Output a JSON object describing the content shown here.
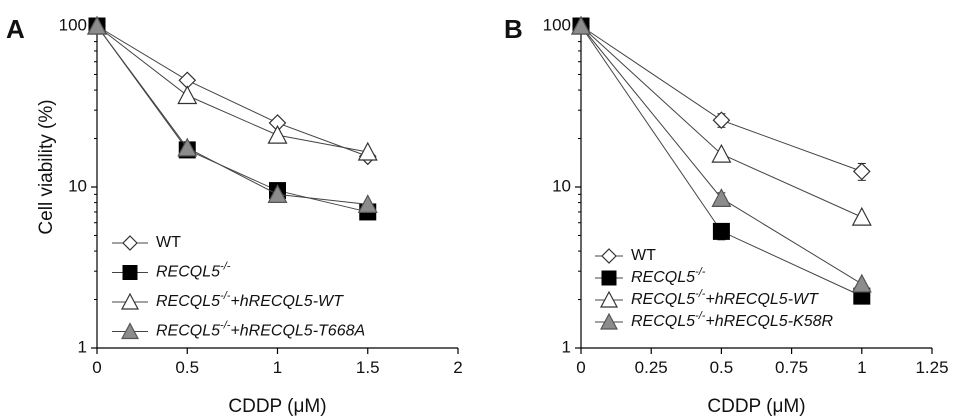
{
  "chart_data": [
    {
      "panel": "A",
      "type": "line",
      "xlabel": "CDDP (μM)",
      "ylabel": "Cell viability (%)",
      "xlim": [
        0,
        2
      ],
      "ylim": [
        1,
        100
      ],
      "yscale": "log",
      "xticks": [
        "0",
        "0.5",
        "1",
        "1.5",
        "2"
      ],
      "yticks": [
        "1",
        "10",
        "100"
      ],
      "grid": false,
      "legend_position": "bottom-left",
      "series": [
        {
          "name": "WT",
          "marker": "diamond-open",
          "x": [
            0,
            0.5,
            1,
            1.5
          ],
          "y": [
            100,
            46,
            25,
            15.5
          ]
        },
        {
          "name": "RECQL5-/-",
          "name_base": "RECQL5",
          "name_sup": "-/-",
          "name_rest": "",
          "marker": "square-filled",
          "x": [
            0,
            0.5,
            1,
            1.5
          ],
          "y": [
            100,
            17,
            9.5,
            7
          ]
        },
        {
          "name": "RECQL5-/-+hRECQL5-WT",
          "name_base": "RECQL5",
          "name_sup": "-/-",
          "name_rest": "+hRECQL5-WT",
          "marker": "triangle-open",
          "x": [
            0,
            0.5,
            1,
            1.5
          ],
          "y": [
            100,
            37,
            21,
            16.5
          ]
        },
        {
          "name": "RECQL5-/-+hRECQL5-T668A",
          "name_base": "RECQL5",
          "name_sup": "-/-",
          "name_rest": "+hRECQL5-T668A",
          "marker": "triangle-gray",
          "x": [
            0,
            0.5,
            1,
            1.5
          ],
          "y": [
            100,
            17.5,
            9,
            7.8
          ]
        }
      ]
    },
    {
      "panel": "B",
      "type": "line",
      "xlabel": "CDDP (μM)",
      "ylabel": "",
      "xlim": [
        0,
        1.25
      ],
      "ylim": [
        1,
        100
      ],
      "yscale": "log",
      "xticks": [
        "0",
        "0.25",
        "0.5",
        "0.75",
        "1",
        "1.25"
      ],
      "yticks": [
        "1",
        "10",
        "100"
      ],
      "grid": false,
      "legend_position": "bottom-left",
      "series": [
        {
          "name": "WT",
          "marker": "diamond-open",
          "x": [
            0,
            0.5,
            1
          ],
          "y": [
            100,
            26,
            12.5
          ],
          "err": [
            0,
            2.5,
            1.5
          ]
        },
        {
          "name": "RECQL5-/-",
          "name_base": "RECQL5",
          "name_sup": "-/-",
          "name_rest": "",
          "marker": "square-filled",
          "x": [
            0,
            0.5,
            1
          ],
          "y": [
            100,
            5.3,
            2.1
          ],
          "err": [
            0,
            0.6,
            0
          ]
        },
        {
          "name": "RECQL5-/-+hRECQL5-WT",
          "name_base": "RECQL5",
          "name_sup": "-/-",
          "name_rest": "+hRECQL5-WT",
          "marker": "triangle-open",
          "x": [
            0,
            0.5,
            1
          ],
          "y": [
            100,
            16,
            6.5
          ],
          "err": [
            0,
            0,
            0
          ]
        },
        {
          "name": "RECQL5-/-+hRECQL5-K58R",
          "name_base": "RECQL5",
          "name_sup": "-/-",
          "name_rest": "+hRECQL5-K58R",
          "marker": "triangle-gray",
          "x": [
            0,
            0.5,
            1
          ],
          "y": [
            100,
            8.5,
            2.5
          ],
          "err": [
            0,
            0.7,
            0
          ]
        }
      ]
    }
  ]
}
